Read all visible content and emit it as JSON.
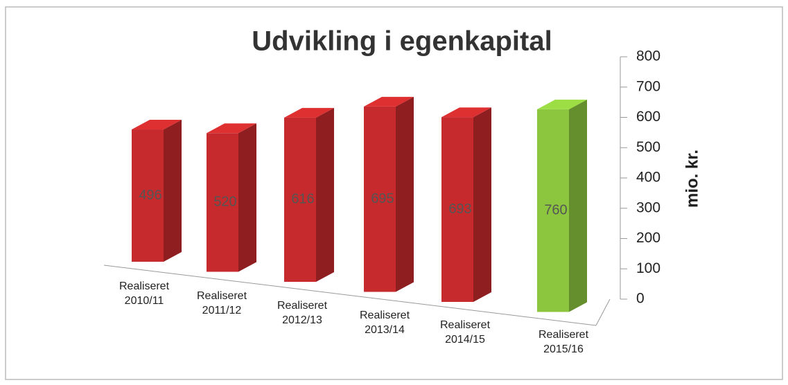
{
  "chart_data": {
    "type": "bar3d",
    "title": "Udvikling i egenkapital",
    "y_axis_label": "mio. kr.",
    "categories": [
      "Realiseret\n2010/11",
      "Realiseret\n2011/12",
      "Realiseret\n2012/13",
      "Realiseret\n2013/14",
      "Realiseret\n2014/15",
      "Realiseret\n2015/16"
    ],
    "values": [
      496,
      520,
      616,
      695,
      693,
      760
    ],
    "colors": [
      "#c62a2c",
      "#c62a2c",
      "#c62a2c",
      "#c62a2c",
      "#c62a2c",
      "#8cc63e"
    ],
    "ylim": [
      0,
      800
    ],
    "yticks": [
      0,
      100,
      200,
      300,
      400,
      500,
      600,
      700,
      800
    ]
  }
}
